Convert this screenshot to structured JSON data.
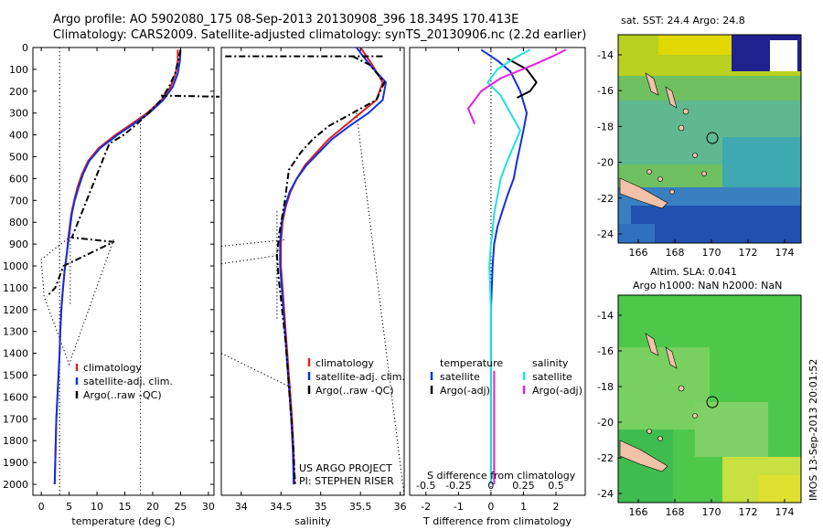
{
  "header": {
    "line1": "Argo profile: AO 5902080_175 08-Sep-2013 20130908_396 18.349S 170.413E",
    "line2": "Climatology: CARS2009. Satellite-adjusted climatology: synTS_20130906.nc (2.2d earlier)"
  },
  "colors": {
    "climatology": "#e02020",
    "satellite": "#1030e0",
    "argo": "#000000",
    "salinity_sat": "#20e0e0",
    "salinity_argo": "#e020e0"
  },
  "chart_data": [
    {
      "type": "line",
      "id": "temperature",
      "xlabel": "temperature (deg C)",
      "ylabel": "",
      "xlim": [
        -1.5,
        31
      ],
      "ylim": [
        2050,
        0
      ],
      "xticks": [
        0,
        5,
        10,
        15,
        20,
        25,
        30
      ],
      "yticks": [
        0,
        100,
        200,
        300,
        400,
        500,
        600,
        700,
        800,
        900,
        1000,
        1100,
        1200,
        1300,
        1400,
        1500,
        1600,
        1700,
        1800,
        1900,
        2000
      ],
      "legend": [
        "climatology",
        "satellite-adj. clim.",
        "Argo(..raw -QC)"
      ],
      "legend_position": "bottom-center",
      "series": [
        {
          "name": "climatology",
          "style": "solid",
          "color": "#e02020",
          "x": [
            24.5,
            24.5,
            24.1,
            23.2,
            21.6,
            19.0,
            16.2,
            13.3,
            10.3,
            8.4,
            7.3,
            6.5,
            5.9,
            5.4,
            5.1,
            4.8,
            4.6,
            4.2,
            3.9,
            3.6,
            3.4,
            3.3,
            3.1,
            2.9,
            2.7,
            2.6,
            2.5,
            2.4
          ],
          "y": [
            10,
            60,
            120,
            180,
            240,
            300,
            350,
            400,
            460,
            520,
            580,
            640,
            700,
            760,
            820,
            880,
            940,
            1020,
            1100,
            1200,
            1300,
            1400,
            1500,
            1600,
            1700,
            1800,
            1900,
            2000
          ]
        },
        {
          "name": "satellite-adj. clim.",
          "style": "solid",
          "color": "#1030e0",
          "x": [
            25.0,
            24.9,
            24.5,
            23.6,
            21.9,
            19.4,
            16.6,
            13.7,
            10.6,
            8.6,
            7.5,
            6.7,
            6.0,
            5.5,
            5.2,
            4.9,
            4.6,
            4.2,
            3.9,
            3.6,
            3.4,
            3.3,
            3.1,
            2.9,
            2.7,
            2.6,
            2.5,
            2.4
          ],
          "y": [
            10,
            60,
            120,
            180,
            240,
            300,
            350,
            400,
            460,
            520,
            580,
            640,
            700,
            760,
            820,
            880,
            940,
            1020,
            1100,
            1200,
            1300,
            1400,
            1500,
            1600,
            1700,
            1800,
            1900,
            2000
          ]
        },
        {
          "name": "Argo(..raw -QC)",
          "style": "dashdot",
          "color": "#000000",
          "x": [
            25.0,
            24.6,
            24.0,
            22.9,
            21.5,
            19.2,
            17.2,
            14.8,
            12.2,
            5.5,
            13.0,
            4.0,
            2.5,
            1.0
          ],
          "y": [
            10,
            60,
            120,
            180,
            240,
            300,
            350,
            400,
            440,
            870,
            890,
            1000,
            1100,
            1140
          ]
        },
        {
          "name": "reject-upper",
          "style": "dashdot",
          "color": "#000000",
          "x": [
            21.5,
            32.0
          ],
          "y": [
            220,
            225
          ]
        }
      ],
      "dotted_lines": [
        {
          "x": [
            3.3,
            3.3
          ],
          "y": [
            0,
            2050
          ]
        },
        {
          "x": [
            17.8,
            17.8
          ],
          "y": [
            300,
            2050
          ]
        },
        {
          "x": [
            5.2,
            5.2
          ],
          "y": [
            800,
            1180
          ]
        },
        {
          "x": [
            13.0,
            5.0,
            0.5,
            0.0,
            5.0
          ],
          "y": [
            880,
            1450,
            1140,
            970,
            870
          ]
        }
      ]
    },
    {
      "type": "line",
      "id": "salinity",
      "xlabel": "salinity",
      "xlim": [
        33.75,
        36.05
      ],
      "ylim": [
        2050,
        0
      ],
      "xticks": [
        34,
        34.5,
        35,
        35.5,
        36
      ],
      "xtick_labels": [
        "34",
        "34.5",
        "35",
        "35.5",
        "36"
      ],
      "legend": [
        "climatology",
        "satellite-adj. clim.",
        "Argo(..raw -QC)"
      ],
      "legend_position": "bottom-right",
      "annotation1": "US ARGO PROJECT",
      "annotation2": "PI: STEPHEN RISER",
      "series": [
        {
          "name": "climatology",
          "style": "solid",
          "color": "#e02020",
          "x": [
            35.5,
            35.65,
            35.78,
            35.7,
            35.5,
            35.3,
            35.1,
            34.95,
            34.8,
            34.7,
            34.62,
            34.56,
            34.52,
            34.5,
            34.5,
            34.52,
            34.54,
            34.56,
            34.58,
            34.6,
            34.62,
            34.64,
            34.66,
            34.67
          ],
          "y": [
            0,
            80,
            160,
            240,
            300,
            360,
            420,
            480,
            540,
            600,
            660,
            730,
            800,
            900,
            1000,
            1100,
            1200,
            1300,
            1400,
            1500,
            1600,
            1700,
            1850,
            2000
          ]
        },
        {
          "name": "satellite-adj. clim.",
          "style": "solid",
          "color": "#1030e0",
          "x": [
            35.45,
            35.62,
            35.82,
            35.78,
            35.6,
            35.36,
            35.14,
            34.98,
            34.82,
            34.7,
            34.61,
            34.55,
            34.51,
            34.49,
            34.49,
            34.51,
            34.53,
            34.55,
            34.57,
            34.59,
            34.61,
            34.63,
            34.65,
            34.66
          ],
          "y": [
            0,
            80,
            160,
            240,
            300,
            360,
            420,
            480,
            540,
            600,
            660,
            730,
            800,
            900,
            1000,
            1100,
            1200,
            1300,
            1400,
            1500,
            1600,
            1700,
            1850,
            2000
          ]
        },
        {
          "name": "Argo(..raw -QC)",
          "style": "dashdot",
          "color": "#000000",
          "x": [
            35.4,
            35.62,
            35.8,
            35.7,
            35.4,
            35.1,
            34.9,
            34.75,
            34.6,
            34.55,
            34.48,
            34.45,
            34.47,
            34.5,
            34.53,
            34.56,
            34.58,
            34.6,
            34.62,
            34.64,
            34.66,
            34.67,
            34.68
          ],
          "y": [
            40,
            80,
            160,
            240,
            300,
            360,
            420,
            480,
            560,
            700,
            850,
            950,
            1050,
            1150,
            1250,
            1350,
            1450,
            1550,
            1650,
            1750,
            1850,
            1950,
            2000
          ]
        },
        {
          "name": "reject-upper",
          "style": "dashdot",
          "color": "#000000",
          "x": [
            33.8,
            35.8
          ],
          "y": [
            40,
            40
          ]
        }
      ],
      "dotted_lines": [
        {
          "x": [
            34.45,
            34.45
          ],
          "y": [
            750,
            1250
          ]
        },
        {
          "x": [
            35.45,
            36.05
          ],
          "y": [
            300,
            2050
          ]
        },
        {
          "x": [
            33.75,
            34.55
          ],
          "y": [
            910,
            880
          ]
        },
        {
          "x": [
            33.75,
            34.5
          ],
          "y": [
            990,
            950
          ]
        },
        {
          "x": [
            33.75,
            34.65
          ],
          "y": [
            1400,
            1560
          ]
        }
      ]
    },
    {
      "type": "line",
      "id": "difference",
      "xlabel": "T difference from climatology",
      "xlabel2": "S difference from climatology",
      "xlim": [
        -2.5,
        2.9
      ],
      "ylim": [
        2050,
        0
      ],
      "xticks": [
        -2,
        -1,
        0,
        1,
        2
      ],
      "xtick_labels": [
        "-2",
        "-1",
        "0",
        "1",
        "2"
      ],
      "xticks2": [
        -2.0,
        -1.0,
        0.0,
        1.0,
        2.0
      ],
      "xtick2_labels": [
        "-0.5",
        "-0.25",
        "0",
        "0.25",
        "0.5"
      ],
      "legend_temperature": "temperature",
      "legend_salinity": "salinity",
      "legend": [
        "satellite",
        "Argo(-adj)",
        "satellite",
        "Argo(-adj)"
      ],
      "series": [
        {
          "name": "satellite T",
          "style": "solid",
          "color": "#1030e0",
          "x": [
            -0.3,
            0.2,
            0.6,
            0.9,
            1.1,
            1.0,
            0.9,
            0.8,
            0.7,
            0.5,
            0.35,
            0.2,
            0.1,
            0.05,
            0.0,
            0.0,
            0.0
          ],
          "y": [
            10,
            60,
            110,
            200,
            300,
            380,
            450,
            520,
            600,
            680,
            750,
            820,
            900,
            1000,
            1200,
            1600,
            2000
          ]
        },
        {
          "name": "Argo T",
          "style": "solid",
          "color": "#000000",
          "x": [
            0.5,
            1.1,
            1.4,
            1.2,
            0.8
          ],
          "y": [
            50,
            100,
            160,
            200,
            230
          ]
        },
        {
          "name": "satellite S",
          "style": "solid",
          "color": "#20e0e0",
          "x": [
            1.2,
            0.7,
            0.2,
            -0.1,
            0.3,
            0.6,
            0.9,
            0.7,
            0.5,
            0.3,
            0.2,
            0.1,
            0.05,
            0.0,
            -0.05,
            0.0,
            0.0,
            0.0
          ],
          "y": [
            10,
            50,
            100,
            160,
            220,
            300,
            380,
            450,
            520,
            600,
            680,
            760,
            840,
            900,
            1000,
            1200,
            1600,
            2000
          ]
        },
        {
          "name": "Argo S",
          "style": "solid",
          "color": "#e020e0",
          "x": [
            2.3,
            1.9,
            1.3,
            0.3,
            -0.3,
            -0.7,
            -0.5
          ],
          "y": [
            10,
            40,
            80,
            140,
            200,
            280,
            350
          ]
        },
        {
          "name": "Argo S deep",
          "style": "solid",
          "color": "#e020e0",
          "x": [
            0.1,
            0.1
          ],
          "y": [
            1480,
            2000
          ]
        }
      ],
      "dotted_lines": [
        {
          "x": [
            0,
            0
          ],
          "y": [
            0,
            2050
          ]
        }
      ]
    }
  ],
  "maps": {
    "top": {
      "title": "sat. SST: 24.4  Argo: 24.8",
      "yticks": [
        "-14",
        "-16",
        "-18",
        "-20",
        "-22",
        "-24"
      ],
      "xticks": [
        "166",
        "168",
        "170",
        "172",
        "174"
      ]
    },
    "bottom": {
      "title1": "Altim. SLA: 0.041",
      "title2": "Argo h1000: NaN h2000: NaN",
      "yticks": [
        "-14",
        "-16",
        "-18",
        "-20",
        "-22",
        "-24"
      ],
      "xticks": [
        "166",
        "168",
        "170",
        "172",
        "174"
      ]
    },
    "credit": "IMOS 13-Sep-2013 20:01:52"
  }
}
